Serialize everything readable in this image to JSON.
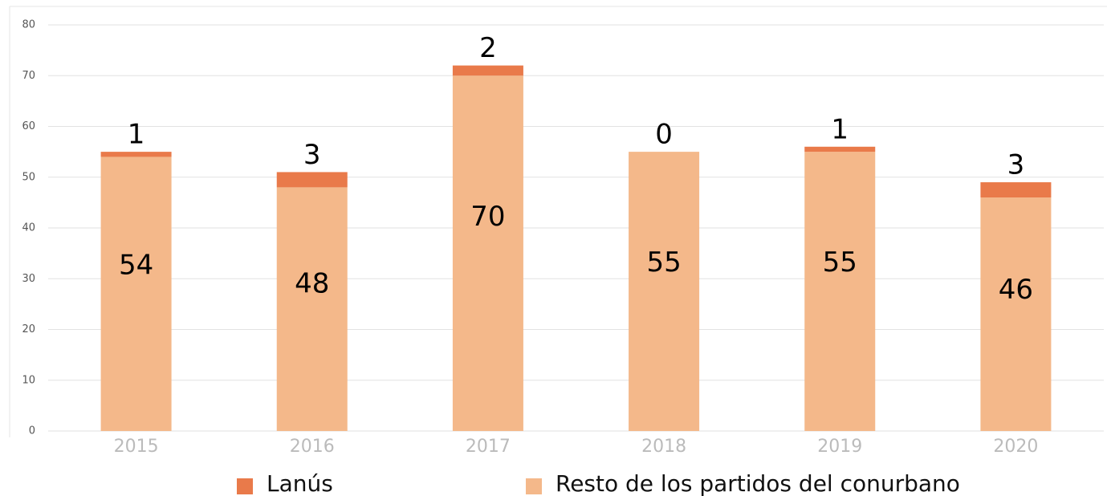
{
  "chart_data": {
    "type": "stacked_bar",
    "categories": [
      "2015",
      "2016",
      "2017",
      "2018",
      "2019",
      "2020"
    ],
    "series": [
      {
        "name": "Lanús",
        "color": "#e97a4a",
        "values": [
          1,
          3,
          2,
          0,
          1,
          3
        ]
      },
      {
        "name": "Resto de los partidos del conurbano",
        "color": "#f4b88a",
        "values": [
          54,
          48,
          70,
          55,
          55,
          46
        ]
      }
    ],
    "ylim": [
      0,
      80
    ],
    "yticks": [
      0,
      10,
      20,
      30,
      40,
      50,
      60,
      70,
      80
    ],
    "grid": true,
    "legend": "bottom"
  }
}
